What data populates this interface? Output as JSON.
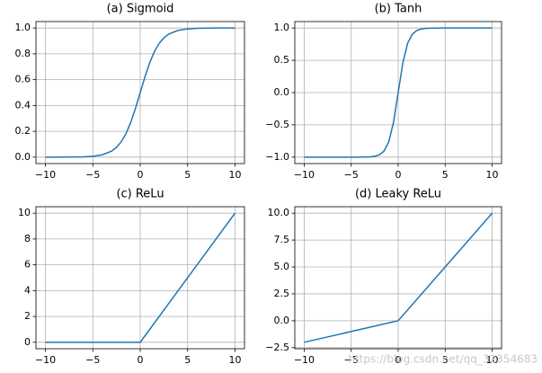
{
  "chart_data": [
    {
      "type": "line",
      "title": "(a) Sigmoid",
      "x": [
        -10,
        -8,
        -6,
        -5,
        -4,
        -3,
        -2.5,
        -2,
        -1.5,
        -1,
        -0.5,
        0,
        0.5,
        1,
        1.5,
        2,
        2.5,
        3,
        4,
        5,
        6,
        8,
        10
      ],
      "series": [
        {
          "color": "#1f77b4",
          "values": [
            0.0,
            0.0003,
            0.0025,
            0.0067,
            0.018,
            0.047,
            0.076,
            0.119,
            0.182,
            0.269,
            0.378,
            0.5,
            0.622,
            0.731,
            0.818,
            0.881,
            0.924,
            0.953,
            0.982,
            0.993,
            0.998,
            1.0,
            1.0
          ]
        }
      ],
      "xlim": [
        -11,
        11
      ],
      "ylim": [
        -0.05,
        1.05
      ],
      "xticks": [
        {
          "value": -10,
          "label": "−10"
        },
        {
          "value": -5,
          "label": "−5"
        },
        0,
        5,
        10
      ],
      "yticks": [
        {
          "value": 0,
          "label": "0.0"
        },
        {
          "value": 0.2,
          "label": "0.2"
        },
        {
          "value": 0.4,
          "label": "0.4"
        },
        {
          "value": 0.6,
          "label": "0.6"
        },
        {
          "value": 0.8,
          "label": "0.8"
        },
        {
          "value": 1,
          "label": "1.0"
        }
      ],
      "grid": true
    },
    {
      "type": "line",
      "title": "(b) Tanh",
      "x": [
        -10,
        -8,
        -6,
        -5,
        -4,
        -3,
        -2.5,
        -2,
        -1.5,
        -1,
        -0.5,
        0,
        0.5,
        1,
        1.5,
        2,
        2.5,
        3,
        4,
        5,
        6,
        8,
        10
      ],
      "series": [
        {
          "color": "#1f77b4",
          "values": [
            -1.0,
            -1.0,
            -1.0,
            -1.0,
            -0.999,
            -0.995,
            -0.987,
            -0.964,
            -0.905,
            -0.762,
            -0.462,
            0,
            0.462,
            0.762,
            0.905,
            0.964,
            0.987,
            0.995,
            0.999,
            1.0,
            1.0,
            1.0,
            1.0
          ]
        }
      ],
      "xlim": [
        -11,
        11
      ],
      "ylim": [
        -1.1,
        1.1
      ],
      "xticks": [
        {
          "value": -10,
          "label": "−10"
        },
        {
          "value": -5,
          "label": "−5"
        },
        0,
        5,
        10
      ],
      "yticks": [
        {
          "value": -1,
          "label": "−1.0"
        },
        {
          "value": -0.5,
          "label": "−0.5"
        },
        {
          "value": 0,
          "label": "0.0"
        },
        {
          "value": 0.5,
          "label": "0.5"
        },
        {
          "value": 1,
          "label": "1.0"
        }
      ],
      "grid": true
    },
    {
      "type": "line",
      "title": "(c) ReLu",
      "x": [
        -10,
        0,
        10
      ],
      "series": [
        {
          "color": "#1f77b4",
          "values": [
            0,
            0,
            10
          ]
        }
      ],
      "xlim": [
        -11,
        11
      ],
      "ylim": [
        -0.5,
        10.5
      ],
      "xticks": [
        {
          "value": -10,
          "label": "−10"
        },
        {
          "value": -5,
          "label": "−5"
        },
        0,
        5,
        10
      ],
      "yticks": [
        0,
        2,
        4,
        6,
        8,
        10
      ],
      "grid": true
    },
    {
      "type": "line",
      "title": "(d) Leaky ReLu",
      "x": [
        -10,
        0,
        10
      ],
      "series": [
        {
          "color": "#1f77b4",
          "values": [
            -2,
            0,
            10
          ]
        }
      ],
      "xlim": [
        -11,
        11
      ],
      "ylim": [
        -2.6,
        10.6
      ],
      "xticks": [
        {
          "value": -10,
          "label": "−10"
        },
        {
          "value": -5,
          "label": "−5"
        },
        0,
        5,
        10
      ],
      "yticks": [
        {
          "value": -2.5,
          "label": "−2.5"
        },
        {
          "value": 0,
          "label": "0.0"
        },
        {
          "value": 2.5,
          "label": "2.5"
        },
        {
          "value": 5,
          "label": "5.0"
        },
        {
          "value": 7.5,
          "label": "7.5"
        },
        {
          "value": 10,
          "label": "10.0"
        }
      ],
      "grid": true
    }
  ],
  "watermark": "https://blog.csdn.net/qq_32354683"
}
